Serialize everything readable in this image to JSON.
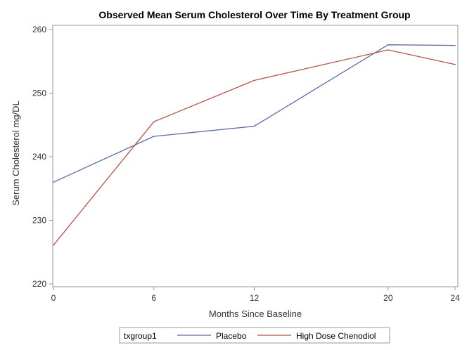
{
  "chart_data": {
    "type": "line",
    "title": "Observed Mean Serum Cholesterol Over Time By Treatment Group",
    "xlabel": "Months Since Baseline",
    "ylabel": "Serum Cholesterol mg/DL",
    "x": [
      0,
      6,
      12,
      20,
      24
    ],
    "xlim": [
      0,
      24
    ],
    "ylim": [
      220,
      260
    ],
    "xticks": [
      "0",
      "6",
      "12",
      "20",
      "24"
    ],
    "yticks": [
      "220",
      "230",
      "240",
      "250",
      "260"
    ],
    "grid": false,
    "legend_position": "bottom",
    "legend_title": "txgroup1",
    "series": [
      {
        "name": "Placebo",
        "color": "#5a6aa8",
        "values": [
          236.0,
          243.2,
          244.8,
          257.6,
          257.5
        ]
      },
      {
        "name": "High Dose Chenodiol",
        "color": "#b5524a",
        "values": [
          226.1,
          245.5,
          252.0,
          256.8,
          254.5
        ]
      }
    ]
  }
}
